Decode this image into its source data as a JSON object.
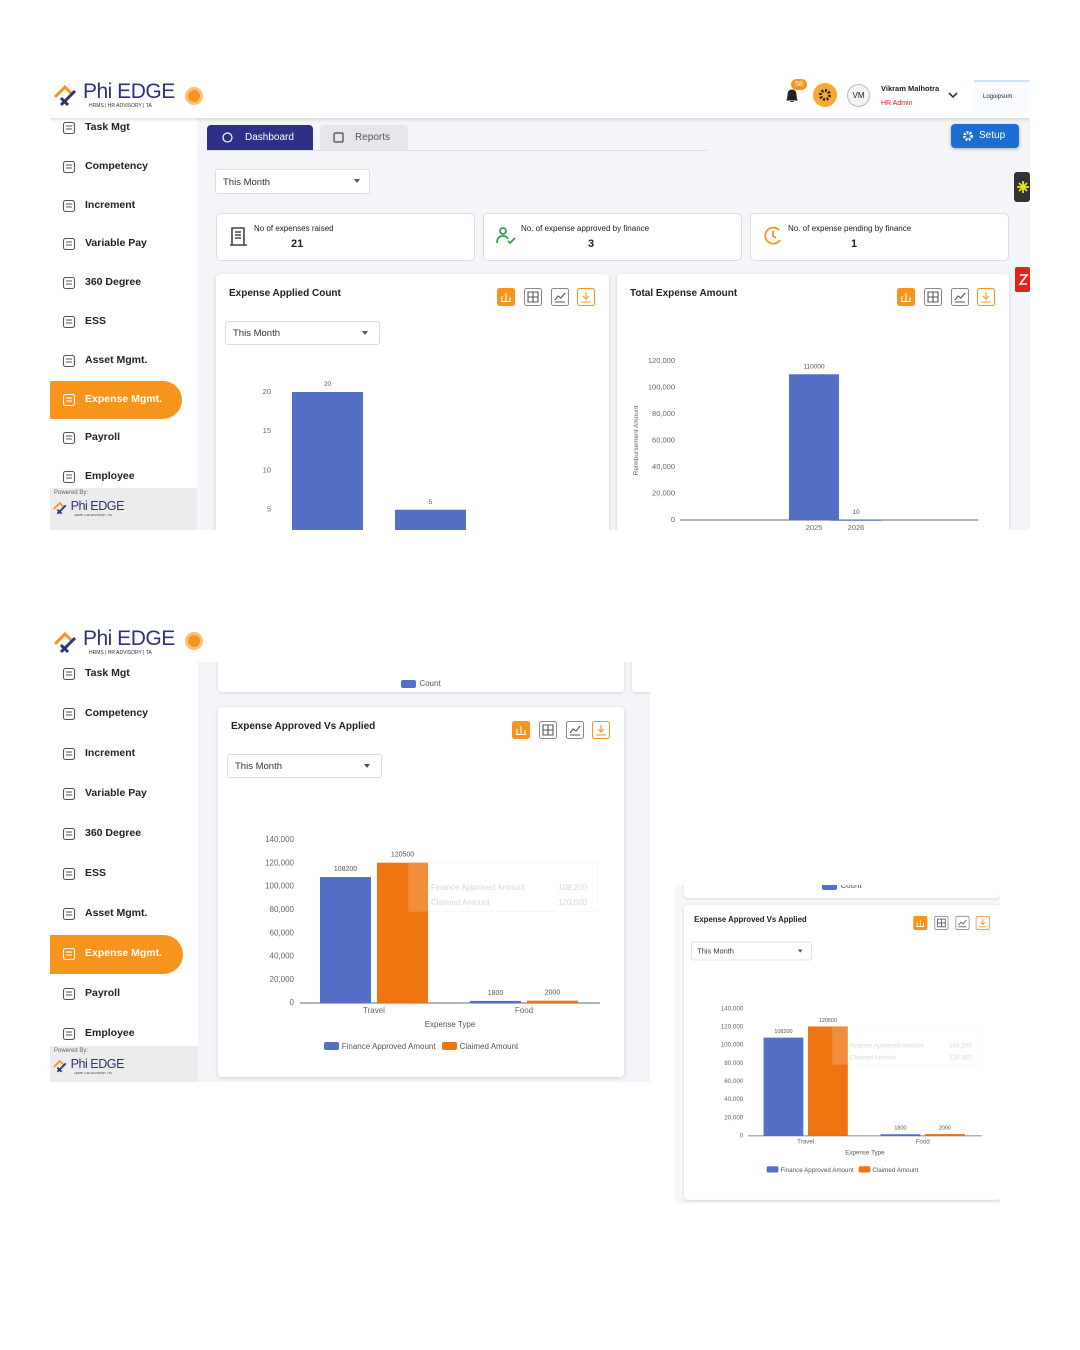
{
  "screens": [
    {
      "logo": {
        "name": "Phi EDGE",
        "tagline": "HRMS | HR ADVISORY | TA"
      },
      "header": {
        "notifications": "58",
        "initials": "VM",
        "user_name": "Vikram Malhotra",
        "user_role": "HR Admin",
        "partner": "Logoipsum"
      },
      "sidebar": {
        "items": [
          {
            "label": "Task Mgt"
          },
          {
            "label": "Competency"
          },
          {
            "label": "Increment"
          },
          {
            "label": "Variable Pay"
          },
          {
            "label": "360 Degree"
          },
          {
            "label": "ESS"
          },
          {
            "label": "Asset Mgmt."
          },
          {
            "label": "Expense Mgmt.",
            "active": true
          },
          {
            "label": "Payroll"
          },
          {
            "label": "Employee"
          }
        ],
        "powered_by": {
          "label": "Powered By:",
          "name": "Phi EDGE",
          "tagline": "HRMS | HR ADVISORY | TA"
        }
      },
      "tabs": [
        {
          "label": "Dashboard",
          "active": true
        },
        {
          "label": "Reports"
        }
      ],
      "setup_button": "Setup",
      "filter": "This Month",
      "kpis": [
        {
          "label": "No of expenses raised",
          "value": 21
        },
        {
          "label": "No. of expense approved by finance",
          "value": 3
        },
        {
          "label": "No. of expense pending by finance",
          "value": 1
        }
      ],
      "charts": [
        {
          "type": "bar",
          "title": "Expense Applied Count",
          "filter": "This Month",
          "values": [
            20,
            5
          ],
          "color": "#5470c6",
          "ylim": [
            0,
            20
          ],
          "yticks": [
            5,
            10,
            15,
            20
          ]
        },
        {
          "type": "bar",
          "title": "Total Expense Amount",
          "ylabel": "Reimbursement Amount",
          "categories": [
            "2025",
            "2026"
          ],
          "values": [
            110000,
            10
          ],
          "color": "#5470c6",
          "ylim": [
            0,
            120000
          ],
          "yticks": [
            0,
            {
              "value": 20000,
              "label": "20,000"
            },
            {
              "value": 40000,
              "label": "40,000"
            },
            {
              "value": 60000,
              "label": "60,000"
            },
            {
              "value": 80000,
              "label": "80,000"
            },
            {
              "value": 100000,
              "label": "100,000"
            },
            {
              "value": 120000,
              "label": "120,000"
            }
          ]
        }
      ]
    },
    {
      "logo": {
        "name": "Phi EDGE",
        "tagline": "HRMS | HR ADVISORY | TA"
      },
      "sidebar": {
        "items": [
          {
            "label": "Task Mgt"
          },
          {
            "label": "Competency"
          },
          {
            "label": "Increment"
          },
          {
            "label": "Variable Pay"
          },
          {
            "label": "360 Degree"
          },
          {
            "label": "ESS"
          },
          {
            "label": "Asset Mgmt."
          },
          {
            "label": "Expense Mgmt.",
            "active": true
          },
          {
            "label": "Payroll"
          },
          {
            "label": "Employee"
          }
        ],
        "powered_by": {
          "label": "Powered By:",
          "name": "Phi EDGE",
          "tagline": "HRMS | HR ADVISORY | TA"
        }
      },
      "count_legend": "Count",
      "charts": [
        {
          "type": "bar",
          "title": "Expense Approved Vs Applied",
          "filter": "This Month",
          "categories": [
            "Travel",
            "Food"
          ],
          "xlabel": "Expense Type",
          "series": [
            {
              "name": "Finance Approved Amount",
              "color": "#5470c6",
              "values": [
                108200,
                1800
              ]
            },
            {
              "name": "Claimed Amount",
              "color": "#ee7512",
              "values": [
                120500,
                2000
              ]
            }
          ],
          "ylim": [
            0,
            140000
          ],
          "yticks": [
            0,
            {
              "value": 20000,
              "label": "20,000"
            },
            {
              "value": 40000,
              "label": "40,000"
            },
            {
              "value": 60000,
              "label": "60,000"
            },
            {
              "value": 80000,
              "label": "80,000"
            },
            {
              "value": 100000,
              "label": "100,000"
            },
            {
              "value": 120000,
              "label": "120,000"
            },
            {
              "value": 140000,
              "label": "140,000"
            }
          ],
          "tooltip": [
            {
              "name": "Finance Approved Amount",
              "value": "108,200"
            },
            {
              "name": "Claimed Amount",
              "value": "120,500"
            }
          ]
        }
      ]
    },
    {
      "count_legend": "Count",
      "charts": [
        {
          "type": "bar",
          "title": "Expense Approved Vs Applied",
          "filter": "This Month",
          "categories": [
            "Travel",
            "Food"
          ],
          "xlabel": "Expense Type",
          "series": [
            {
              "name": "Finance Approved Amount",
              "color": "#5470c6",
              "values": [
                108200,
                1800
              ]
            },
            {
              "name": "Claimed Amount",
              "color": "#ee7512",
              "values": [
                120500,
                2000
              ]
            }
          ],
          "ylim": [
            0,
            140000
          ],
          "yticks": [
            0,
            {
              "value": 20000,
              "label": "20,000"
            },
            {
              "value": 40000,
              "label": "40,000"
            },
            {
              "value": 60000,
              "label": "60,000"
            },
            {
              "value": 80000,
              "label": "80,000"
            },
            {
              "value": 100000,
              "label": "100,000"
            },
            {
              "value": 120000,
              "label": "120,000"
            },
            {
              "value": 140000,
              "label": "140,000"
            }
          ],
          "tooltip": [
            {
              "name": "Finance Approved Amount",
              "value": "108,200"
            },
            {
              "name": "Claimed Amount",
              "value": "120,500"
            }
          ]
        }
      ]
    }
  ]
}
